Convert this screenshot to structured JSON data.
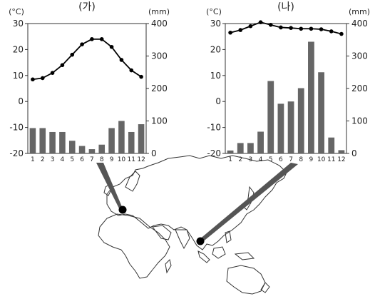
{
  "chart_data": [
    {
      "type": "bar+line",
      "title": "(가)",
      "left_unit": "(°C)",
      "right_unit": "(mm)",
      "categories": [
        "1",
        "2",
        "3",
        "4",
        "5",
        "6",
        "7",
        "8",
        "9",
        "10",
        "11",
        "12"
      ],
      "temperature": [
        8.5,
        9,
        11,
        14,
        18,
        22,
        24,
        24,
        21,
        16,
        12,
        9.5
      ],
      "precipitation": [
        78,
        78,
        66,
        66,
        39,
        23,
        13,
        27,
        78,
        100,
        66,
        90
      ],
      "temp_ylim": [
        -20,
        30
      ],
      "temp_ticks": [
        "30",
        "20",
        "10",
        "0",
        "-10",
        "-20"
      ],
      "precip_ylim": [
        0,
        400
      ],
      "precip_ticks": [
        "400",
        "300",
        "200",
        "100",
        "0"
      ]
    },
    {
      "type": "bar+line",
      "title": "(나)",
      "left_unit": "(°C)",
      "right_unit": "(mm)",
      "categories": [
        "1",
        "2",
        "3",
        "4",
        "5",
        "6",
        "7",
        "8",
        "9",
        "10",
        "11",
        "12"
      ],
      "temperature": [
        26.5,
        27.5,
        29,
        30.5,
        29.5,
        28.5,
        28.3,
        28,
        28,
        27.8,
        27,
        26
      ],
      "precipitation": [
        9,
        32,
        32,
        67,
        223,
        153,
        160,
        201,
        344,
        250,
        49,
        10
      ],
      "temp_ylim": [
        -20,
        30
      ],
      "temp_ticks": [
        "30",
        "20",
        "10",
        "0",
        "-10",
        "-20"
      ],
      "precip_ylim": [
        0,
        400
      ],
      "precip_ticks": [
        "400",
        "300",
        "200",
        "100",
        "0"
      ]
    }
  ],
  "map": {
    "location_a": "(가)",
    "location_b": "(나)"
  }
}
